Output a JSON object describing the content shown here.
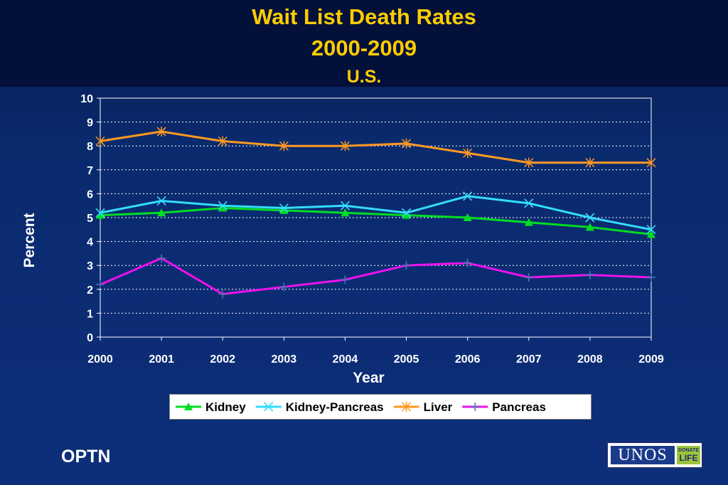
{
  "title": {
    "line1": "Wait List Death Rates",
    "line2": "2000-2009",
    "line3": "U.S."
  },
  "footer": {
    "org": "OPTN",
    "logo_text": "UNOS",
    "logo_badge_top": "DONATE",
    "logo_badge_bottom": "LIFE"
  },
  "colors": {
    "background": "#0d2f7a",
    "title": "#ffcc00",
    "kidney": "#00dd22",
    "kidney_pancreas": "#33ddff",
    "liver": "#ff9922",
    "pancreas": "#ee11ee"
  },
  "chart_data": {
    "type": "line",
    "title": "Wait List Death Rates 2000-2009 U.S.",
    "xlabel": "Year",
    "ylabel": "Percent",
    "x": [
      "2000",
      "2001",
      "2002",
      "2003",
      "2004",
      "2005",
      "2006",
      "2007",
      "2008",
      "2009"
    ],
    "ylim": [
      0,
      10
    ],
    "yticks": [
      "0",
      "1",
      "2",
      "3",
      "4",
      "5",
      "6",
      "7",
      "8",
      "9",
      "10"
    ],
    "grid": true,
    "legend_position": "bottom",
    "series": [
      {
        "name": "Kidney",
        "marker": "triangle",
        "color": "#00dd22",
        "values": [
          5.1,
          5.2,
          5.4,
          5.3,
          5.2,
          5.1,
          5.0,
          4.8,
          4.6,
          4.3
        ]
      },
      {
        "name": "Kidney-Pancreas",
        "marker": "x",
        "color": "#33ddff",
        "values": [
          5.2,
          5.7,
          5.5,
          5.4,
          5.5,
          5.2,
          5.9,
          5.6,
          5.0,
          4.5
        ]
      },
      {
        "name": "Liver",
        "marker": "star",
        "color": "#ff9922",
        "values": [
          8.2,
          8.6,
          8.2,
          8.0,
          8.0,
          8.1,
          7.7,
          7.3,
          7.3,
          7.3
        ]
      },
      {
        "name": "Pancreas",
        "marker": "plus",
        "color": "#ee11ee",
        "values": [
          2.2,
          3.3,
          1.8,
          2.1,
          2.4,
          3.0,
          3.1,
          2.5,
          2.6,
          2.5
        ]
      }
    ]
  }
}
